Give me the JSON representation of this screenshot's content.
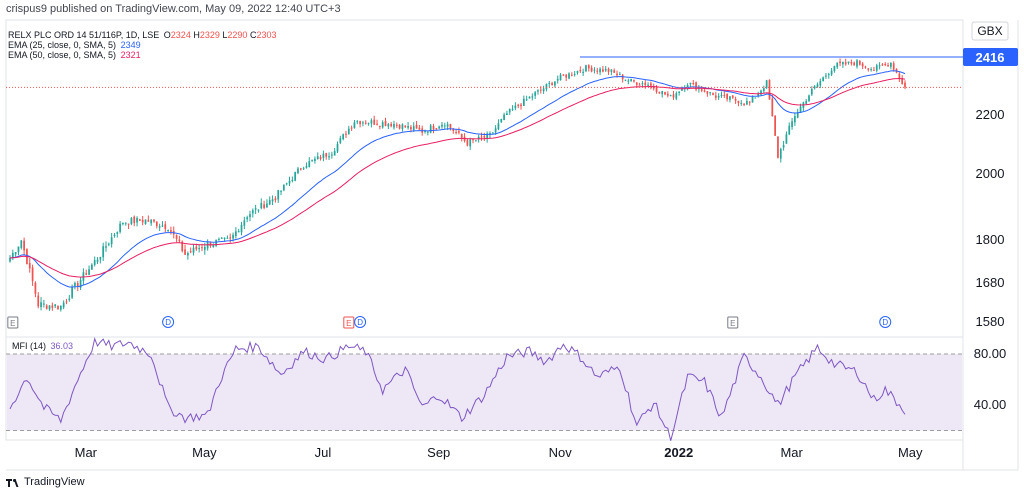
{
  "header": {
    "published": "crispus9 published on TradingView.com, May 09, 2022 12:40 UTC+3"
  },
  "legend": {
    "symbol": "RELX PLC ORD 14 51/116P, 1D, LSE",
    "ohlc": {
      "o_label": "O",
      "o": "2324",
      "h_label": "H",
      "h": "2329",
      "l_label": "L",
      "l": "2290",
      "c_label": "C",
      "c": "2303"
    },
    "ema25_label": "EMA (25, close, 0, SMA, 5)",
    "ema25_value": "2349",
    "ema50_label": "EMA (50, close, 0, SMA, 5)",
    "ema50_value": "2321",
    "mfi_label": "MFI (14)",
    "mfi_value": "36.03"
  },
  "currency": "GBX",
  "price_tag": "2416",
  "footer": {
    "brand": "TradingView"
  },
  "colors": {
    "up": "#26a69a",
    "down": "#ef5350",
    "ema25": "#2962ff",
    "ema50": "#e91e63",
    "mfi": "#7e57c2",
    "mfi_band": "#ede7f6",
    "resistance": "#2962ff",
    "price_tag_bg": "#2962ff"
  },
  "chart_data": {
    "type": "candlestick",
    "price_axis": {
      "ticks": [
        "1580",
        "1680",
        "1800",
        "2000",
        "2200"
      ],
      "ylim": [
        1560,
        2480
      ]
    },
    "mfi_axis": {
      "ticks": [
        "40.00",
        "80.00"
      ],
      "ylim": [
        10,
        95
      ],
      "band": [
        20,
        80
      ]
    },
    "x_axis_labels": [
      "Mar",
      "May",
      "Jul",
      "Sep",
      "Nov",
      "2022",
      "Jan",
      "Mar",
      "May"
    ],
    "month_label_bars": [
      18,
      60,
      102,
      143,
      186,
      228,
      228,
      268,
      310
    ],
    "n_bars": 318,
    "resistance_level": 2416,
    "last_close": 2303,
    "events": [
      {
        "type": "E",
        "bar": 1,
        "style": "gray"
      },
      {
        "type": "D",
        "bar": 56,
        "style": "blue"
      },
      {
        "type": "E",
        "bar": 120,
        "style": "red"
      },
      {
        "type": "D",
        "bar": 124,
        "style": "blue"
      },
      {
        "type": "E",
        "bar": 256,
        "style": "gray"
      },
      {
        "type": "D",
        "bar": 310,
        "style": "blue"
      }
    ],
    "price_path": [
      [
        0,
        1750
      ],
      [
        4,
        1800
      ],
      [
        10,
        1625
      ],
      [
        18,
        1620
      ],
      [
        24,
        1680
      ],
      [
        32,
        1760
      ],
      [
        40,
        1855
      ],
      [
        48,
        1860
      ],
      [
        56,
        1840
      ],
      [
        62,
        1760
      ],
      [
        70,
        1790
      ],
      [
        78,
        1800
      ],
      [
        84,
        1875
      ],
      [
        94,
        1930
      ],
      [
        104,
        2030
      ],
      [
        114,
        2075
      ],
      [
        122,
        2180
      ],
      [
        136,
        2170
      ],
      [
        146,
        2145
      ],
      [
        154,
        2175
      ],
      [
        162,
        2105
      ],
      [
        170,
        2130
      ],
      [
        176,
        2205
      ],
      [
        184,
        2265
      ],
      [
        194,
        2335
      ],
      [
        204,
        2375
      ],
      [
        212,
        2365
      ],
      [
        220,
        2325
      ],
      [
        226,
        2315
      ],
      [
        234,
        2265
      ],
      [
        240,
        2320
      ],
      [
        250,
        2270
      ],
      [
        262,
        2245
      ],
      [
        268,
        2320
      ],
      [
        272,
        2060
      ],
      [
        278,
        2200
      ],
      [
        284,
        2290
      ],
      [
        292,
        2385
      ],
      [
        300,
        2395
      ],
      [
        306,
        2370
      ],
      [
        312,
        2395
      ],
      [
        317,
        2303
      ]
    ],
    "mfi_path": [
      [
        0,
        38
      ],
      [
        6,
        62
      ],
      [
        12,
        38
      ],
      [
        18,
        28
      ],
      [
        24,
        60
      ],
      [
        30,
        90
      ],
      [
        36,
        86
      ],
      [
        42,
        89
      ],
      [
        50,
        80
      ],
      [
        56,
        38
      ],
      [
        62,
        30
      ],
      [
        70,
        32
      ],
      [
        74,
        58
      ],
      [
        80,
        84
      ],
      [
        88,
        86
      ],
      [
        96,
        64
      ],
      [
        104,
        82
      ],
      [
        112,
        76
      ],
      [
        120,
        86
      ],
      [
        126,
        82
      ],
      [
        132,
        52
      ],
      [
        140,
        68
      ],
      [
        146,
        38
      ],
      [
        152,
        48
      ],
      [
        160,
        30
      ],
      [
        168,
        48
      ],
      [
        176,
        78
      ],
      [
        184,
        82
      ],
      [
        190,
        74
      ],
      [
        196,
        88
      ],
      [
        202,
        78
      ],
      [
        208,
        62
      ],
      [
        216,
        70
      ],
      [
        222,
        24
      ],
      [
        228,
        42
      ],
      [
        234,
        14
      ],
      [
        240,
        62
      ],
      [
        246,
        58
      ],
      [
        252,
        30
      ],
      [
        260,
        78
      ],
      [
        266,
        62
      ],
      [
        272,
        40
      ],
      [
        278,
        62
      ],
      [
        286,
        85
      ],
      [
        292,
        72
      ],
      [
        300,
        66
      ],
      [
        306,
        44
      ],
      [
        310,
        52
      ],
      [
        317,
        36
      ]
    ]
  }
}
